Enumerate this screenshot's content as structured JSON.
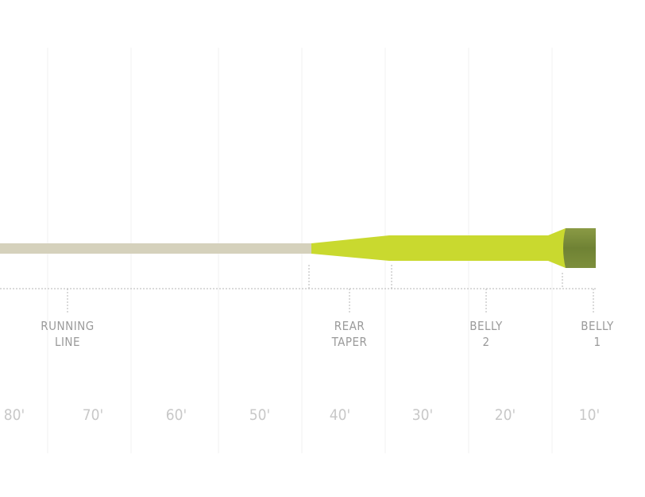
{
  "sections": [
    {
      "label_line1": "RUNNING",
      "label_line2": "LINE"
    },
    {
      "label_line1": "REAR",
      "label_line2": "TAPER"
    },
    {
      "label_line1": "BELLY",
      "label_line2": "2"
    },
    {
      "label_line1": "BELLY",
      "label_line2": "1"
    }
  ],
  "distance_ticks": [
    "80'",
    "70'",
    "60'",
    "50'",
    "40'",
    "30'",
    "20'",
    "10'"
  ],
  "colors": {
    "running_line": "#d5d1bc",
    "rear_taper_belly2": "#c9d92f",
    "belly1": "#778a3a",
    "grid": "#f0f0f0",
    "dotted": "#b5b5b5",
    "label": "#9a9a9a",
    "tick_label": "#c8c8c8"
  }
}
